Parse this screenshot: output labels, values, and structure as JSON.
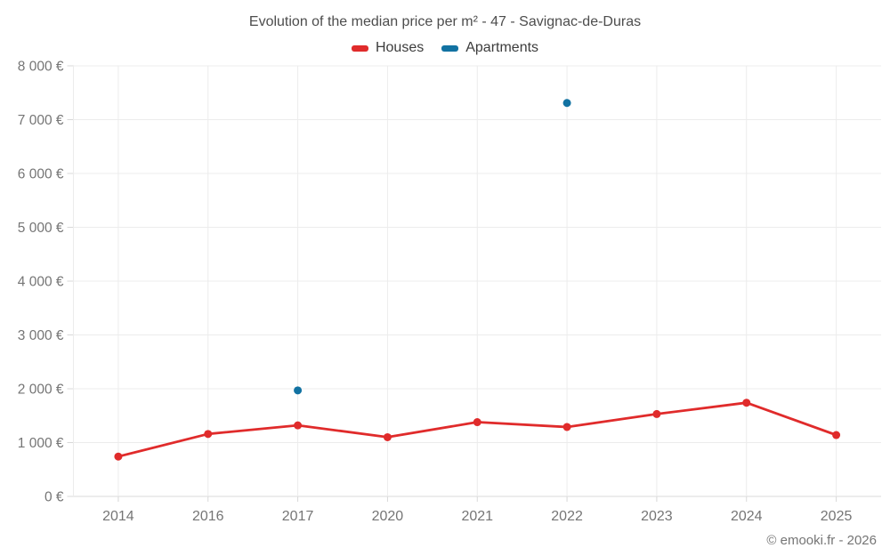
{
  "chart_data": {
    "type": "line",
    "title": "Evolution of the median price per m² - 47 - Savignac-de-Duras",
    "xlabel": "",
    "ylabel": "",
    "categories": [
      "2014",
      "2016",
      "2017",
      "2020",
      "2021",
      "2022",
      "2023",
      "2024",
      "2025"
    ],
    "series": [
      {
        "name": "Houses",
        "color": "#e02b2b",
        "values": [
          740,
          1160,
          1320,
          1100,
          1380,
          1290,
          1530,
          1740,
          1140
        ]
      },
      {
        "name": "Apartments",
        "color": "#1272a2",
        "values": [
          null,
          null,
          1970,
          null,
          null,
          7310,
          null,
          null,
          null
        ]
      }
    ],
    "ylim": [
      0,
      8000
    ],
    "ytick_step": 1000,
    "ytick_labels": [
      "0 €",
      "1 000 €",
      "2 000 €",
      "3 000 €",
      "4 000 €",
      "5 000 €",
      "6 000 €",
      "7 000 €",
      "8 000 €"
    ],
    "grid": true,
    "legend_position": "top-center"
  },
  "footer": "© emooki.fr - 2026",
  "style": {
    "grid_color": "#ececec",
    "axis_color": "#d8d8d8",
    "tick_label_color": "#757575",
    "title_color": "#4d4d4d",
    "legend_text_color": "#3c3c3c"
  }
}
